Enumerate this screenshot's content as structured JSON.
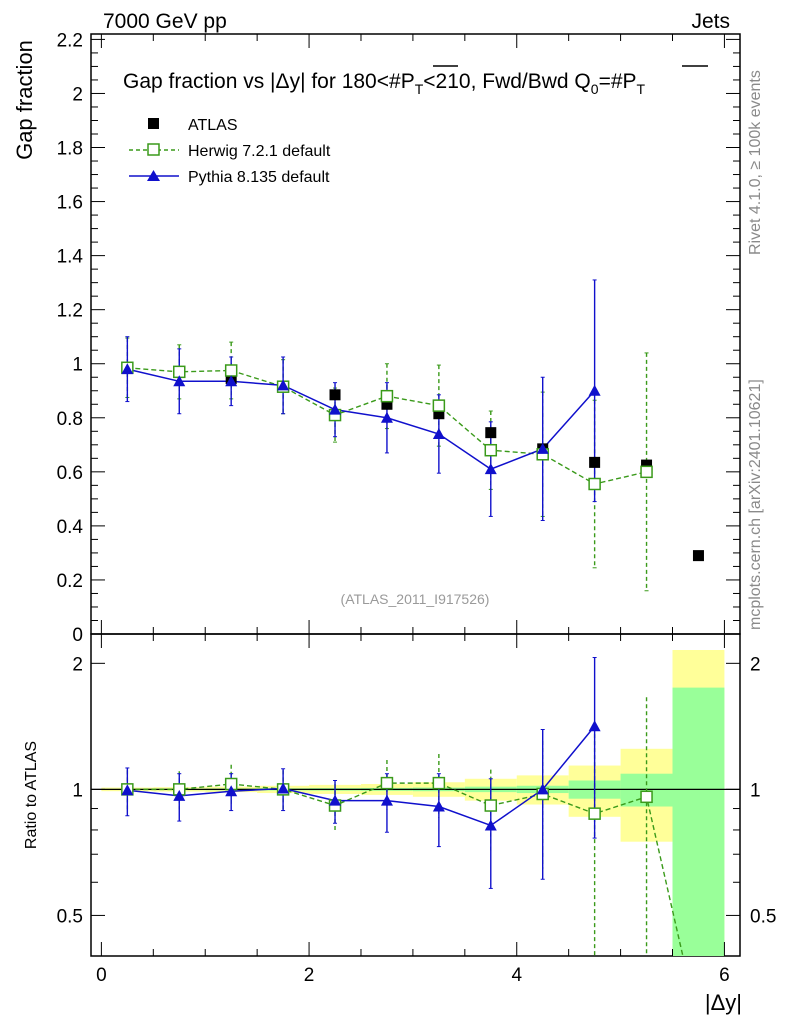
{
  "header": {
    "energy_label": "7000 GeV pp",
    "process_label": "Jets",
    "rivet_label": "Rivet 4.1.0, ≥ 100k events",
    "mcplots_label": "mcplots.cern.ch [arXiv:2401.10621]",
    "analysis_id": "(ATLAS_2011_I917526)"
  },
  "chart_data": {
    "type": "scatter",
    "title": "Gap fraction vs |Δy| for 180<#P̄T<210, Fwd/Bwd Q0=#P̄T",
    "title_parts": {
      "a": "Gap fraction vs |",
      "delta": "Δ",
      "b": "y| for 180<#",
      "P1": "P",
      "T1": "T",
      "c": "<210, Fwd/Bwd Q",
      "zero": "0",
      "d": "=#",
      "P2": "P",
      "T2": "T"
    },
    "xlabel": "|Δy|",
    "ylabel": "Gap fraction",
    "ratio_ylabel": "Ratio to ATLAS",
    "xlim": [
      -0.1,
      6.15
    ],
    "ylim": [
      0,
      2.22
    ],
    "ratio_ylim": [
      0.4,
      2.35
    ],
    "x_ticks": [
      "0",
      "2",
      "4",
      "6"
    ],
    "x_tick_values": [
      0,
      2,
      4,
      6
    ],
    "y_ticks": [
      "0",
      "0.2",
      "0.4",
      "0.6",
      "0.8",
      "1",
      "1.2",
      "1.4",
      "1.6",
      "1.8",
      "2",
      "2.2"
    ],
    "y_tick_values": [
      0,
      0.2,
      0.4,
      0.6,
      0.8,
      1.0,
      1.2,
      1.4,
      1.6,
      1.8,
      2.0,
      2.2
    ],
    "ratio_ticks": [
      "0.5",
      "1",
      "2"
    ],
    "ratio_tick_values": [
      0.5,
      1,
      2
    ],
    "legend_position": "top-left",
    "bin_edges": [
      0,
      0.5,
      1,
      1.5,
      2,
      2.5,
      3,
      3.5,
      4,
      4.5,
      5,
      5.5,
      6
    ],
    "series": [
      {
        "name": "ATLAS",
        "color": "#000000",
        "marker": "filled-square",
        "x": [
          0.25,
          0.75,
          1.25,
          1.75,
          2.25,
          2.75,
          3.25,
          3.75,
          4.25,
          4.75,
          5.25,
          5.75
        ],
        "y": [
          0.985,
          0.97,
          0.945,
          0.915,
          0.885,
          0.85,
          0.815,
          0.745,
          0.685,
          0.635,
          0.625,
          0.29
        ]
      },
      {
        "name": "Herwig 7.2.1 default",
        "color": "#3a9a1a",
        "marker": "open-square",
        "line": "dashed",
        "x": [
          0.25,
          0.75,
          1.25,
          1.75,
          2.25,
          2.75,
          3.25,
          3.75,
          4.25,
          4.75,
          5.25
        ],
        "y": [
          0.985,
          0.97,
          0.975,
          0.915,
          0.81,
          0.88,
          0.845,
          0.68,
          0.665,
          0.555,
          0.6
        ],
        "err": [
          0.11,
          0.1,
          0.105,
          0.1,
          0.1,
          0.12,
          0.15,
          0.145,
          0.23,
          0.31,
          0.44
        ],
        "ratio": [
          1.0,
          1.0,
          1.03,
          1.0,
          0.915,
          1.035,
          1.035,
          0.915,
          0.975,
          0.875,
          0.96
        ],
        "ratio_err": [
          0.11,
          0.105,
          0.115,
          0.11,
          0.115,
          0.14,
          0.18,
          0.2,
          0.33,
          0.48,
          0.7
        ]
      },
      {
        "name": "Pythia 8.135 default",
        "color": "#1010cc",
        "marker": "filled-triangle",
        "line": "solid",
        "x": [
          0.25,
          0.75,
          1.25,
          1.75,
          2.25,
          2.75,
          3.25,
          3.75,
          4.25,
          4.75
        ],
        "y": [
          0.98,
          0.935,
          0.935,
          0.92,
          0.83,
          0.8,
          0.74,
          0.61,
          0.685,
          0.9
        ],
        "err": [
          0.12,
          0.12,
          0.09,
          0.105,
          0.1,
          0.13,
          0.145,
          0.175,
          0.265,
          0.41
        ],
        "ratio": [
          0.995,
          0.965,
          0.99,
          1.005,
          0.94,
          0.94,
          0.91,
          0.82,
          1.0,
          1.415
        ],
        "ratio_err": [
          0.13,
          0.125,
          0.1,
          0.115,
          0.11,
          0.15,
          0.18,
          0.24,
          0.39,
          0.65
        ]
      }
    ],
    "ratio_line_exit": {
      "x": 5.6,
      "y": 0.38
    },
    "uncertainty_bands": {
      "x_edges": [
        0,
        0.5,
        1,
        1.5,
        2,
        2.5,
        3,
        3.5,
        4,
        4.5,
        5,
        5.5,
        6
      ],
      "stat_half_width": [
        0.003,
        0.004,
        0.005,
        0.006,
        0.007,
        0.008,
        0.01,
        0.015,
        0.02,
        0.05,
        0.09,
        0.75
      ],
      "total_half_width": [
        0.01,
        0.012,
        0.015,
        0.02,
        0.025,
        0.03,
        0.04,
        0.06,
        0.08,
        0.14,
        0.25,
        1.2
      ]
    }
  },
  "colors": {
    "band_stat": "#99ff99",
    "band_total": "#ffff99",
    "herwig": "#3a9a1a",
    "pythia": "#1010cc",
    "data": "#000000"
  }
}
